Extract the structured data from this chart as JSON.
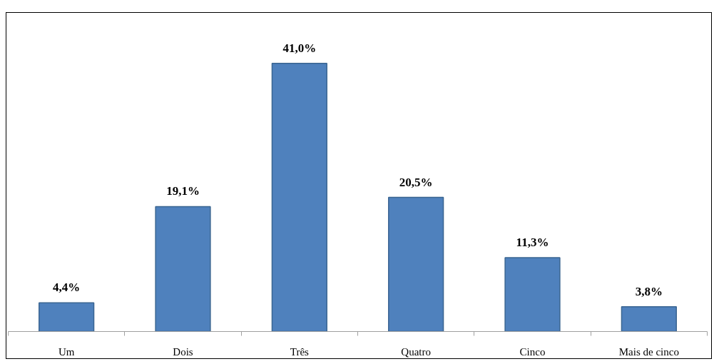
{
  "chart_data": {
    "type": "bar",
    "categories": [
      "Um",
      "Dois",
      "Três",
      "Quatro",
      "Cinco",
      "Mais de cinco"
    ],
    "values": [
      4.4,
      19.1,
      41.0,
      20.5,
      11.3,
      3.8
    ],
    "value_labels": [
      "4,4%",
      "19,1%",
      "41,0%",
      "20,5%",
      "11,3%",
      "3,8%"
    ],
    "color": "#4f81bd",
    "grid": false,
    "tick_labels": "x"
  }
}
